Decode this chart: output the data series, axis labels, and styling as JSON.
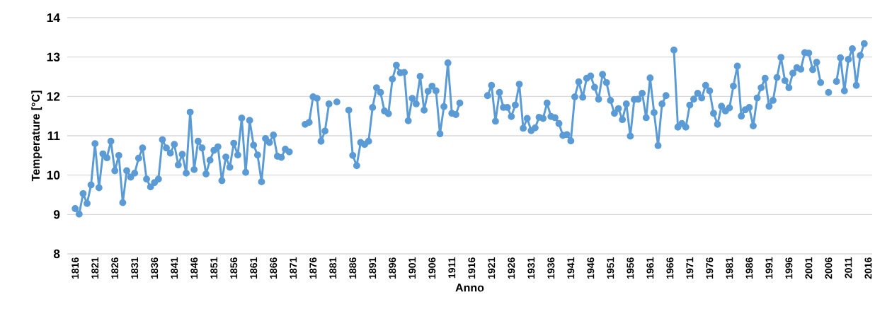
{
  "chart_data": {
    "type": "line",
    "xlabel": "Anno",
    "ylabel": "Temperature [°C]",
    "x": [
      1816,
      1817,
      1818,
      1819,
      1820,
      1821,
      1822,
      1823,
      1824,
      1825,
      1826,
      1827,
      1828,
      1829,
      1830,
      1831,
      1832,
      1833,
      1834,
      1835,
      1836,
      1837,
      1838,
      1839,
      1840,
      1841,
      1842,
      1843,
      1844,
      1845,
      1846,
      1847,
      1848,
      1849,
      1850,
      1851,
      1852,
      1853,
      1854,
      1855,
      1856,
      1857,
      1858,
      1859,
      1860,
      1861,
      1862,
      1863,
      1864,
      1865,
      1866,
      1867,
      1868,
      1869,
      1870,
      1871,
      1872,
      1873,
      1874,
      1875,
      1876,
      1877,
      1878,
      1879,
      1880,
      1881,
      1882,
      1883,
      1884,
      1885,
      1886,
      1887,
      1888,
      1889,
      1890,
      1891,
      1892,
      1893,
      1894,
      1895,
      1896,
      1897,
      1898,
      1899,
      1900,
      1901,
      1902,
      1903,
      1904,
      1905,
      1906,
      1907,
      1908,
      1909,
      1910,
      1911,
      1912,
      1913,
      1914,
      1915,
      1916,
      1917,
      1918,
      1919,
      1920,
      1921,
      1922,
      1923,
      1924,
      1925,
      1926,
      1927,
      1928,
      1929,
      1930,
      1931,
      1932,
      1933,
      1934,
      1935,
      1936,
      1937,
      1938,
      1939,
      1940,
      1941,
      1942,
      1943,
      1944,
      1945,
      1946,
      1947,
      1948,
      1949,
      1950,
      1951,
      1952,
      1953,
      1954,
      1955,
      1956,
      1957,
      1958,
      1959,
      1960,
      1961,
      1962,
      1963,
      1964,
      1965,
      1966,
      1967,
      1968,
      1969,
      1970,
      1971,
      1972,
      1973,
      1974,
      1975,
      1976,
      1977,
      1978,
      1979,
      1980,
      1981,
      1982,
      1983,
      1984,
      1985,
      1986,
      1987,
      1988,
      1989,
      1990,
      1991,
      1992,
      1993,
      1994,
      1995,
      1996,
      1997,
      1998,
      1999,
      2000,
      2001,
      2002,
      2003,
      2004,
      2005,
      2006,
      2007,
      2008,
      2009,
      2010,
      2011,
      2012,
      2013,
      2014,
      2015
    ],
    "values": [
      9.15,
      9.01,
      9.53,
      9.28,
      9.75,
      10.8,
      9.68,
      10.54,
      10.44,
      10.86,
      10.11,
      10.5,
      9.3,
      10.11,
      9.95,
      10.05,
      10.43,
      10.69,
      9.9,
      9.7,
      9.81,
      9.9,
      10.9,
      10.69,
      10.56,
      10.78,
      10.26,
      10.53,
      10.05,
      11.6,
      10.14,
      10.86,
      10.69,
      10.03,
      10.38,
      10.63,
      10.72,
      9.86,
      10.46,
      10.2,
      10.81,
      10.51,
      11.45,
      10.07,
      11.39,
      10.76,
      10.51,
      9.83,
      10.93,
      10.83,
      11.02,
      10.48,
      10.45,
      10.66,
      10.59,
      null,
      null,
      null,
      11.29,
      11.34,
      11.99,
      11.95,
      10.86,
      11.12,
      11.81,
      null,
      11.86,
      null,
      null,
      11.65,
      10.5,
      10.24,
      10.83,
      10.78,
      10.86,
      11.72,
      12.22,
      12.1,
      11.63,
      11.56,
      12.44,
      12.79,
      12.6,
      12.61,
      11.38,
      11.95,
      11.81,
      12.51,
      11.65,
      12.13,
      12.26,
      12.14,
      11.05,
      11.74,
      12.85,
      11.57,
      11.54,
      11.83,
      null,
      null,
      null,
      null,
      null,
      null,
      12.02,
      12.28,
      11.37,
      12.1,
      11.72,
      11.72,
      11.49,
      11.78,
      12.31,
      11.19,
      11.44,
      11.13,
      11.2,
      11.47,
      11.44,
      11.83,
      11.49,
      11.46,
      11.31,
      11.01,
      11.03,
      10.87,
      11.99,
      12.37,
      11.98,
      12.46,
      12.52,
      12.23,
      11.93,
      12.56,
      12.35,
      11.9,
      11.57,
      11.69,
      11.41,
      11.81,
      10.99,
      11.92,
      11.93,
      12.08,
      11.46,
      12.47,
      11.59,
      10.75,
      11.81,
      12.02,
      null,
      13.18,
      11.22,
      11.31,
      11.22,
      11.78,
      11.93,
      12.08,
      11.96,
      12.28,
      12.14,
      11.57,
      11.29,
      11.75,
      11.63,
      11.71,
      12.26,
      12.77,
      11.5,
      11.66,
      11.72,
      11.25,
      11.96,
      12.22,
      12.46,
      11.75,
      11.9,
      12.48,
      12.99,
      12.4,
      12.22,
      12.59,
      12.73,
      12.69,
      13.11,
      13.1,
      12.68,
      12.87,
      12.35,
      null,
      12.1,
      null,
      12.38,
      12.98,
      12.14,
      12.94,
      13.21,
      12.28,
      13.04,
      13.34
    ],
    "color": "#5b9bd5",
    "marker": "circle",
    "line_style": "solid",
    "grid": "y",
    "xlim": [
      1814,
      2017
    ],
    "ylim": [
      8,
      14
    ],
    "xticks": [
      1816,
      1821,
      1826,
      1831,
      1836,
      1841,
      1846,
      1851,
      1856,
      1861,
      1866,
      1871,
      1876,
      1881,
      1886,
      1891,
      1896,
      1901,
      1906,
      1911,
      1916,
      1921,
      1926,
      1931,
      1936,
      1941,
      1946,
      1951,
      1956,
      1961,
      1966,
      1971,
      1976,
      1981,
      1986,
      1991,
      1996,
      2001,
      2006,
      2011,
      2016
    ],
    "yticks": [
      8,
      9,
      10,
      11,
      12,
      13,
      14
    ]
  }
}
